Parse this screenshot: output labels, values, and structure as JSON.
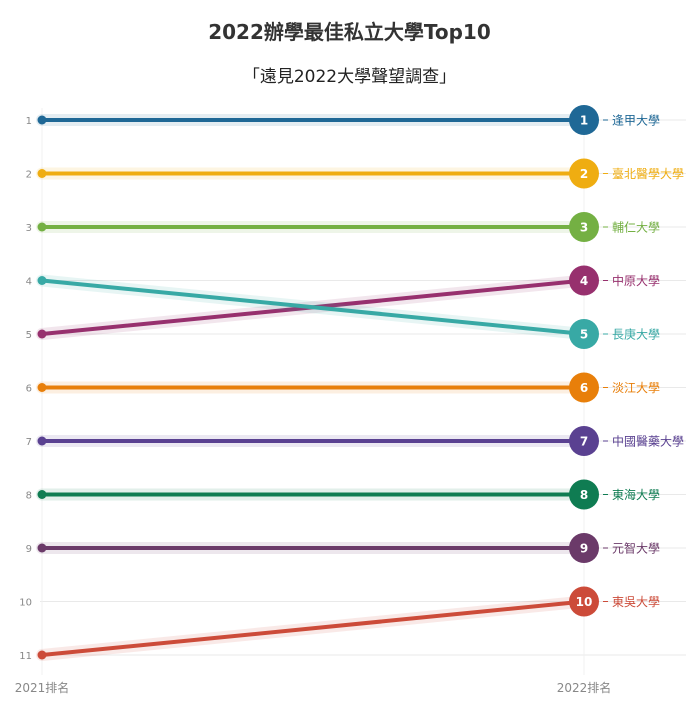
{
  "chart_data": {
    "type": "line",
    "chart_subtype": "slope",
    "title": "2022辦學最佳私立大學Top10",
    "subtitle": "「遠見2022大學聲望調查」",
    "x": [
      "2021排名",
      "2022排名"
    ],
    "y_axis": {
      "ticks": [
        1,
        2,
        3,
        4,
        5,
        6,
        7,
        8,
        9,
        10,
        11
      ],
      "reversed": true,
      "ylim": [
        1,
        11
      ]
    },
    "grid": true,
    "series": [
      {
        "name": "逢甲大學",
        "values": [
          1,
          1
        ],
        "color": "#1f6896"
      },
      {
        "name": "臺北醫學大學",
        "values": [
          2,
          2
        ],
        "color": "#efad11"
      },
      {
        "name": "輔仁大學",
        "values": [
          3,
          3
        ],
        "color": "#74b043"
      },
      {
        "name": "中原大學",
        "values": [
          5,
          4
        ],
        "color": "#97306e"
      },
      {
        "name": "長庚大學",
        "values": [
          4,
          5
        ],
        "color": "#38a9a5"
      },
      {
        "name": "淡江大學",
        "values": [
          6,
          6
        ],
        "color": "#e87f0a"
      },
      {
        "name": "中國醫藥大學",
        "values": [
          7,
          7
        ],
        "color": "#5a4191"
      },
      {
        "name": "東海大學",
        "values": [
          8,
          8
        ],
        "color": "#0f7c52"
      },
      {
        "name": "元智大學",
        "values": [
          9,
          9
        ],
        "color": "#6b3a69"
      },
      {
        "name": "東吳大學",
        "values": [
          11,
          10
        ],
        "color": "#cc4b39"
      }
    ]
  }
}
